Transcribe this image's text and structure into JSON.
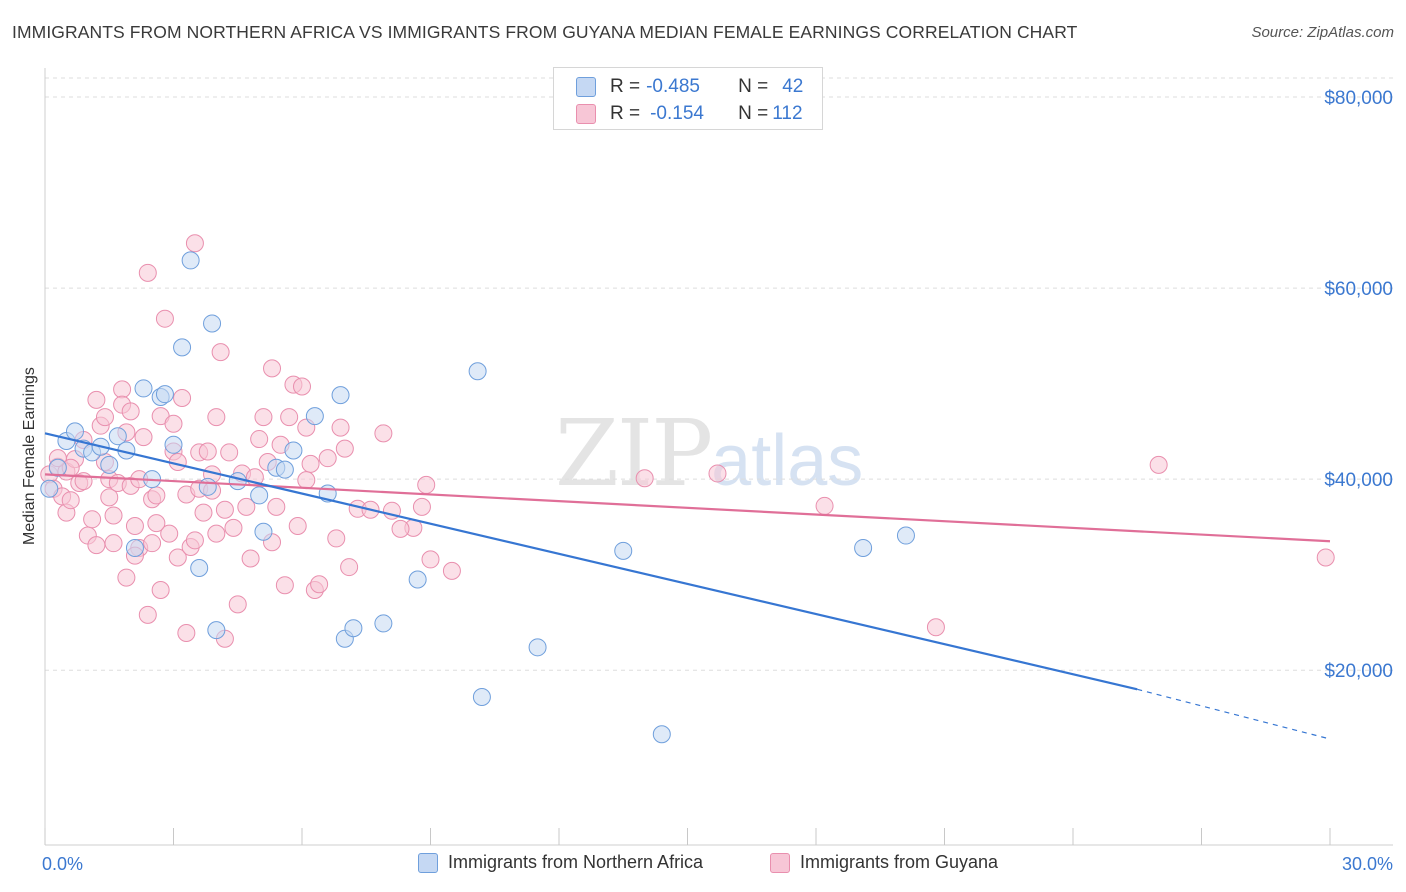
{
  "title": "IMMIGRANTS FROM NORTHERN AFRICA VS IMMIGRANTS FROM GUYANA MEDIAN FEMALE EARNINGS CORRELATION CHART",
  "source": "Source: ZipAtlas.com",
  "watermark": {
    "zip": "ZIP",
    "atlas": "atlas"
  },
  "legend_top": {
    "rows": [
      {
        "r_label": "R = ",
        "r_value": "-0.485",
        "n_label": "N = ",
        "n_value": "42"
      },
      {
        "r_label": "R = ",
        "r_value": "-0.154",
        "n_label": "N = ",
        "n_value": "112"
      }
    ]
  },
  "legend_bottom": {
    "items": [
      "Immigrants from Northern Africa",
      "Immigrants from Guyana"
    ]
  },
  "colors": {
    "blue_fill": "#c5d8f3",
    "blue_stroke": "#6f9fdc",
    "blue_line": "#3676d2",
    "pink_fill": "#f7c6d6",
    "pink_stroke": "#e98fae",
    "pink_line": "#e06f98",
    "grid": "#dddddd",
    "axis_text": "#3b78d0"
  },
  "chart_data": {
    "type": "scatter",
    "title": "IMMIGRANTS FROM NORTHERN AFRICA VS IMMIGRANTS FROM GUYANA MEDIAN FEMALE EARNINGS CORRELATION CHART",
    "xlabel": "",
    "ylabel": "Median Female Earnings",
    "xlim": [
      0,
      30
    ],
    "ylim": [
      0,
      80000
    ],
    "x_tick_labels": [
      "0.0%",
      "30.0%"
    ],
    "y_ticks": [
      20000,
      40000,
      60000,
      80000
    ],
    "y_tick_labels": [
      "$20,000",
      "$40,000",
      "$60,000",
      "$80,000"
    ],
    "grid": true,
    "legend_position": "top-center",
    "series": [
      {
        "name": "Immigrants from Northern Africa",
        "r": -0.485,
        "n": 42,
        "trend": {
          "x": [
            0,
            25.5
          ],
          "y": [
            44800,
            18000
          ],
          "dash_to": [
            30,
            12800
          ]
        },
        "points": [
          [
            0.1,
            39000
          ],
          [
            0.3,
            41200
          ],
          [
            0.5,
            44000
          ],
          [
            0.7,
            45000
          ],
          [
            0.9,
            43200
          ],
          [
            1.1,
            42800
          ],
          [
            1.3,
            43400
          ],
          [
            1.5,
            41500
          ],
          [
            1.7,
            44500
          ],
          [
            1.9,
            43000
          ],
          [
            2.1,
            32800
          ],
          [
            2.3,
            49500
          ],
          [
            2.5,
            40000
          ],
          [
            2.7,
            48600
          ],
          [
            2.8,
            48900
          ],
          [
            3.0,
            43600
          ],
          [
            3.2,
            53800
          ],
          [
            3.4,
            62900
          ],
          [
            3.6,
            30700
          ],
          [
            3.8,
            39200
          ],
          [
            3.9,
            56300
          ],
          [
            4.0,
            24200
          ],
          [
            4.5,
            39800
          ],
          [
            5.0,
            38300
          ],
          [
            5.1,
            34500
          ],
          [
            5.4,
            41200
          ],
          [
            5.6,
            41000
          ],
          [
            5.8,
            43000
          ],
          [
            6.3,
            46600
          ],
          [
            6.6,
            38500
          ],
          [
            6.9,
            48800
          ],
          [
            7.0,
            23300
          ],
          [
            7.2,
            24400
          ],
          [
            7.9,
            24900
          ],
          [
            8.7,
            29500
          ],
          [
            10.1,
            51300
          ],
          [
            10.2,
            17200
          ],
          [
            11.5,
            22400
          ],
          [
            13.5,
            32500
          ],
          [
            14.4,
            13300
          ],
          [
            19.1,
            32800
          ],
          [
            20.1,
            34100
          ]
        ]
      },
      {
        "name": "Immigrants from Guyana",
        "r": -0.154,
        "n": 112,
        "trend": {
          "x": [
            0,
            30
          ],
          "y": [
            40500,
            33500
          ]
        },
        "points": [
          [
            0.1,
            40500
          ],
          [
            0.2,
            39000
          ],
          [
            0.3,
            41300
          ],
          [
            0.4,
            38200
          ],
          [
            0.5,
            36500
          ],
          [
            0.5,
            40800
          ],
          [
            0.6,
            37800
          ],
          [
            0.7,
            42100
          ],
          [
            0.8,
            39600
          ],
          [
            0.9,
            44100
          ],
          [
            1.0,
            34100
          ],
          [
            1.1,
            35800
          ],
          [
            1.2,
            48300
          ],
          [
            1.2,
            33100
          ],
          [
            1.3,
            45600
          ],
          [
            1.4,
            46500
          ],
          [
            1.5,
            40000
          ],
          [
            1.5,
            38100
          ],
          [
            1.6,
            33300
          ],
          [
            1.7,
            39600
          ],
          [
            1.8,
            49400
          ],
          [
            1.8,
            47800
          ],
          [
            1.9,
            29700
          ],
          [
            1.9,
            44900
          ],
          [
            2.0,
            39300
          ],
          [
            2.0,
            47100
          ],
          [
            2.1,
            35100
          ],
          [
            2.2,
            32800
          ],
          [
            2.2,
            40000
          ],
          [
            2.3,
            44400
          ],
          [
            2.4,
            25800
          ],
          [
            2.4,
            61600
          ],
          [
            2.5,
            37900
          ],
          [
            2.5,
            33300
          ],
          [
            2.6,
            38300
          ],
          [
            2.7,
            46600
          ],
          [
            2.7,
            28400
          ],
          [
            2.8,
            56800
          ],
          [
            2.9,
            34300
          ],
          [
            3.0,
            42900
          ],
          [
            3.0,
            45800
          ],
          [
            3.1,
            31800
          ],
          [
            3.2,
            48500
          ],
          [
            3.3,
            23900
          ],
          [
            3.3,
            38400
          ],
          [
            3.4,
            32900
          ],
          [
            3.5,
            33600
          ],
          [
            3.5,
            64700
          ],
          [
            3.6,
            42800
          ],
          [
            3.6,
            39000
          ],
          [
            3.7,
            36500
          ],
          [
            3.8,
            42900
          ],
          [
            3.9,
            40500
          ],
          [
            4.0,
            34300
          ],
          [
            4.0,
            46500
          ],
          [
            4.1,
            53300
          ],
          [
            4.2,
            36800
          ],
          [
            4.2,
            23300
          ],
          [
            4.3,
            42800
          ],
          [
            4.4,
            34900
          ],
          [
            4.5,
            26900
          ],
          [
            4.6,
            40600
          ],
          [
            4.7,
            37100
          ],
          [
            4.8,
            31700
          ],
          [
            5.0,
            44200
          ],
          [
            5.1,
            46500
          ],
          [
            5.2,
            41800
          ],
          [
            5.3,
            51600
          ],
          [
            5.4,
            37100
          ],
          [
            5.5,
            43600
          ],
          [
            5.6,
            28900
          ],
          [
            5.7,
            46500
          ],
          [
            5.8,
            49900
          ],
          [
            5.9,
            35100
          ],
          [
            6.0,
            49700
          ],
          [
            6.1,
            45400
          ],
          [
            6.2,
            41600
          ],
          [
            6.3,
            28400
          ],
          [
            6.4,
            29000
          ],
          [
            6.6,
            42200
          ],
          [
            6.8,
            33800
          ],
          [
            6.9,
            45400
          ],
          [
            7.0,
            43200
          ],
          [
            7.3,
            36900
          ],
          [
            7.6,
            36800
          ],
          [
            7.9,
            44800
          ],
          [
            8.1,
            36700
          ],
          [
            8.6,
            34900
          ],
          [
            8.8,
            37100
          ],
          [
            8.9,
            39400
          ],
          [
            9.0,
            31600
          ],
          [
            9.5,
            30400
          ],
          [
            14.0,
            40100
          ],
          [
            15.7,
            40600
          ],
          [
            18.2,
            37200
          ],
          [
            20.8,
            24500
          ],
          [
            26.0,
            41500
          ],
          [
            29.9,
            31800
          ],
          [
            0.3,
            42200
          ],
          [
            0.6,
            41200
          ],
          [
            0.9,
            39800
          ],
          [
            1.4,
            41800
          ],
          [
            1.6,
            36200
          ],
          [
            2.1,
            32000
          ],
          [
            2.6,
            35400
          ],
          [
            3.1,
            41800
          ],
          [
            3.9,
            38800
          ],
          [
            4.9,
            40200
          ],
          [
            5.3,
            33400
          ],
          [
            6.1,
            39900
          ],
          [
            7.1,
            30800
          ],
          [
            8.3,
            34800
          ]
        ]
      }
    ]
  }
}
